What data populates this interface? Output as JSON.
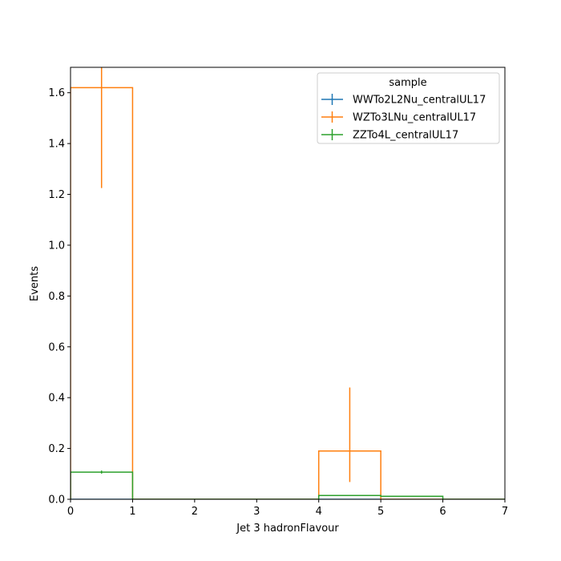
{
  "chart_data": {
    "type": "histogram",
    "xlabel": "Jet 3 hadronFlavour",
    "ylabel": "Events",
    "xlim": [
      0,
      7
    ],
    "ylim": [
      0,
      1.7
    ],
    "xticks": [
      "0",
      "1",
      "2",
      "3",
      "4",
      "5",
      "6",
      "7"
    ],
    "yticks": [
      "0.0",
      "0.2",
      "0.4",
      "0.6",
      "0.8",
      "1.0",
      "1.2",
      "1.4",
      "1.6"
    ],
    "bin_edges": [
      0,
      1,
      2,
      3,
      4,
      5,
      6,
      7
    ],
    "legend_title": "sample",
    "legend_position": "top-right",
    "series": [
      {
        "name": "WWTo2L2Nu_centralUL17",
        "color": "#1f77b4",
        "values": [
          0,
          0,
          0,
          0,
          0,
          0,
          0
        ],
        "err_low": [
          0,
          0,
          0,
          0,
          0,
          0,
          0
        ],
        "err_high": [
          0,
          0,
          0,
          0,
          0,
          0,
          0
        ]
      },
      {
        "name": "WZTo3LNu_centralUL17",
        "color": "#ff7f0e",
        "values": [
          1.62,
          0,
          0,
          0,
          0.19,
          0,
          0
        ],
        "err_low": [
          1.225,
          0,
          0,
          0,
          0.068,
          0,
          0
        ],
        "err_high": [
          1.7,
          0,
          0,
          0,
          0.44,
          0,
          0
        ]
      },
      {
        "name": "ZZTo4L_centralUL17",
        "color": "#2ca02c",
        "values": [
          0.107,
          0,
          0,
          0,
          0.015,
          0.012,
          0
        ],
        "err_low": [
          0.101,
          0,
          0,
          0,
          0.015,
          0.012,
          0
        ],
        "err_high": [
          0.113,
          0,
          0,
          0,
          0.015,
          0.012,
          0
        ]
      }
    ]
  }
}
